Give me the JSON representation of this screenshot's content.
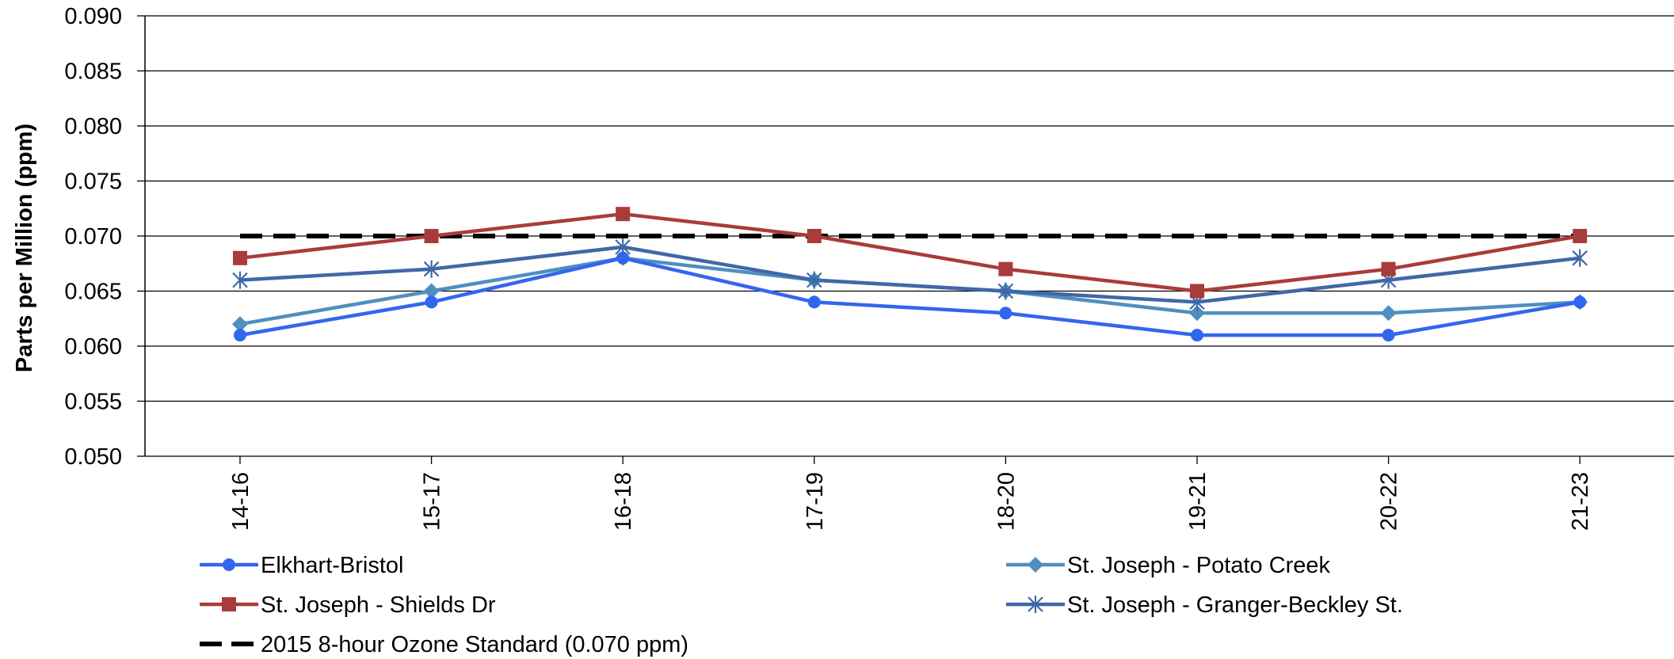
{
  "chart_data": {
    "type": "line",
    "title": "",
    "xlabel": "",
    "ylabel": "Parts per Million (ppm)",
    "categories": [
      "14-16",
      "15-17",
      "16-18",
      "17-19",
      "18-20",
      "19-21",
      "20-22",
      "21-23"
    ],
    "ylim": [
      0.05,
      0.09
    ],
    "yticks": [
      "0.050",
      "0.055",
      "0.060",
      "0.065",
      "0.070",
      "0.075",
      "0.080",
      "0.085",
      "0.090"
    ],
    "grid": true,
    "legend_position": "bottom",
    "series": [
      {
        "name": "Elkhart-Bristol",
        "color": "#3366ee",
        "marker": "circle",
        "dashed": false,
        "values": [
          0.061,
          0.064,
          0.068,
          0.064,
          0.063,
          0.061,
          0.061,
          0.064
        ]
      },
      {
        "name": "St. Joseph - Potato Creek",
        "color": "#4f8fc0",
        "marker": "diamond",
        "dashed": false,
        "values": [
          0.062,
          0.065,
          0.068,
          0.066,
          0.065,
          0.063,
          0.063,
          0.064
        ]
      },
      {
        "name": "St. Joseph - Shields Dr",
        "color": "#a83c3a",
        "marker": "square",
        "dashed": false,
        "values": [
          0.068,
          0.07,
          0.072,
          0.07,
          0.067,
          0.065,
          0.067,
          0.07
        ]
      },
      {
        "name": "St. Joseph - Granger-Beckley St.",
        "color": "#3f68a8",
        "marker": "star",
        "dashed": false,
        "values": [
          0.066,
          0.067,
          0.069,
          0.066,
          0.065,
          0.064,
          0.066,
          0.068
        ]
      },
      {
        "name": "2015 8-hour Ozone Standard (0.070 ppm)",
        "color": "#000000",
        "marker": "none",
        "dashed": true,
        "values": [
          0.07,
          0.07,
          0.07,
          0.07,
          0.07,
          0.07,
          0.07,
          0.07
        ]
      }
    ]
  }
}
